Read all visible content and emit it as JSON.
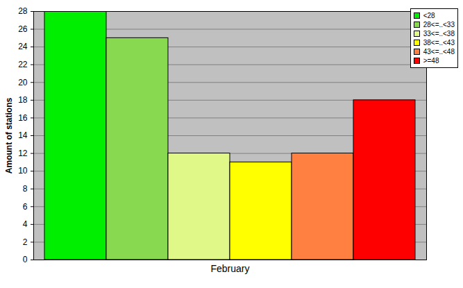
{
  "chart_data": {
    "type": "bar",
    "y_label": "Amount of stations",
    "categories": [
      "February"
    ],
    "series": [
      {
        "name": "<28",
        "color": "#00ee00",
        "values": [
          28
        ]
      },
      {
        "name": "28<=..<33",
        "color": "#88d850",
        "values": [
          25
        ]
      },
      {
        "name": "33<=..<38",
        "color": "#e0f888",
        "values": [
          12
        ]
      },
      {
        "name": "38<=..<43",
        "color": "#ffff00",
        "values": [
          11
        ]
      },
      {
        "name": "43<=..<48",
        "color": "#ff8040",
        "values": [
          12
        ]
      },
      {
        "name": ">=48",
        "color": "#ff0000",
        "values": [
          18
        ]
      }
    ],
    "ylim": [
      0,
      28
    ],
    "yticks": [
      0,
      2,
      4,
      6,
      8,
      10,
      12,
      14,
      16,
      18,
      20,
      22,
      24,
      26,
      28
    ],
    "grid": true,
    "legend": "top-right"
  }
}
